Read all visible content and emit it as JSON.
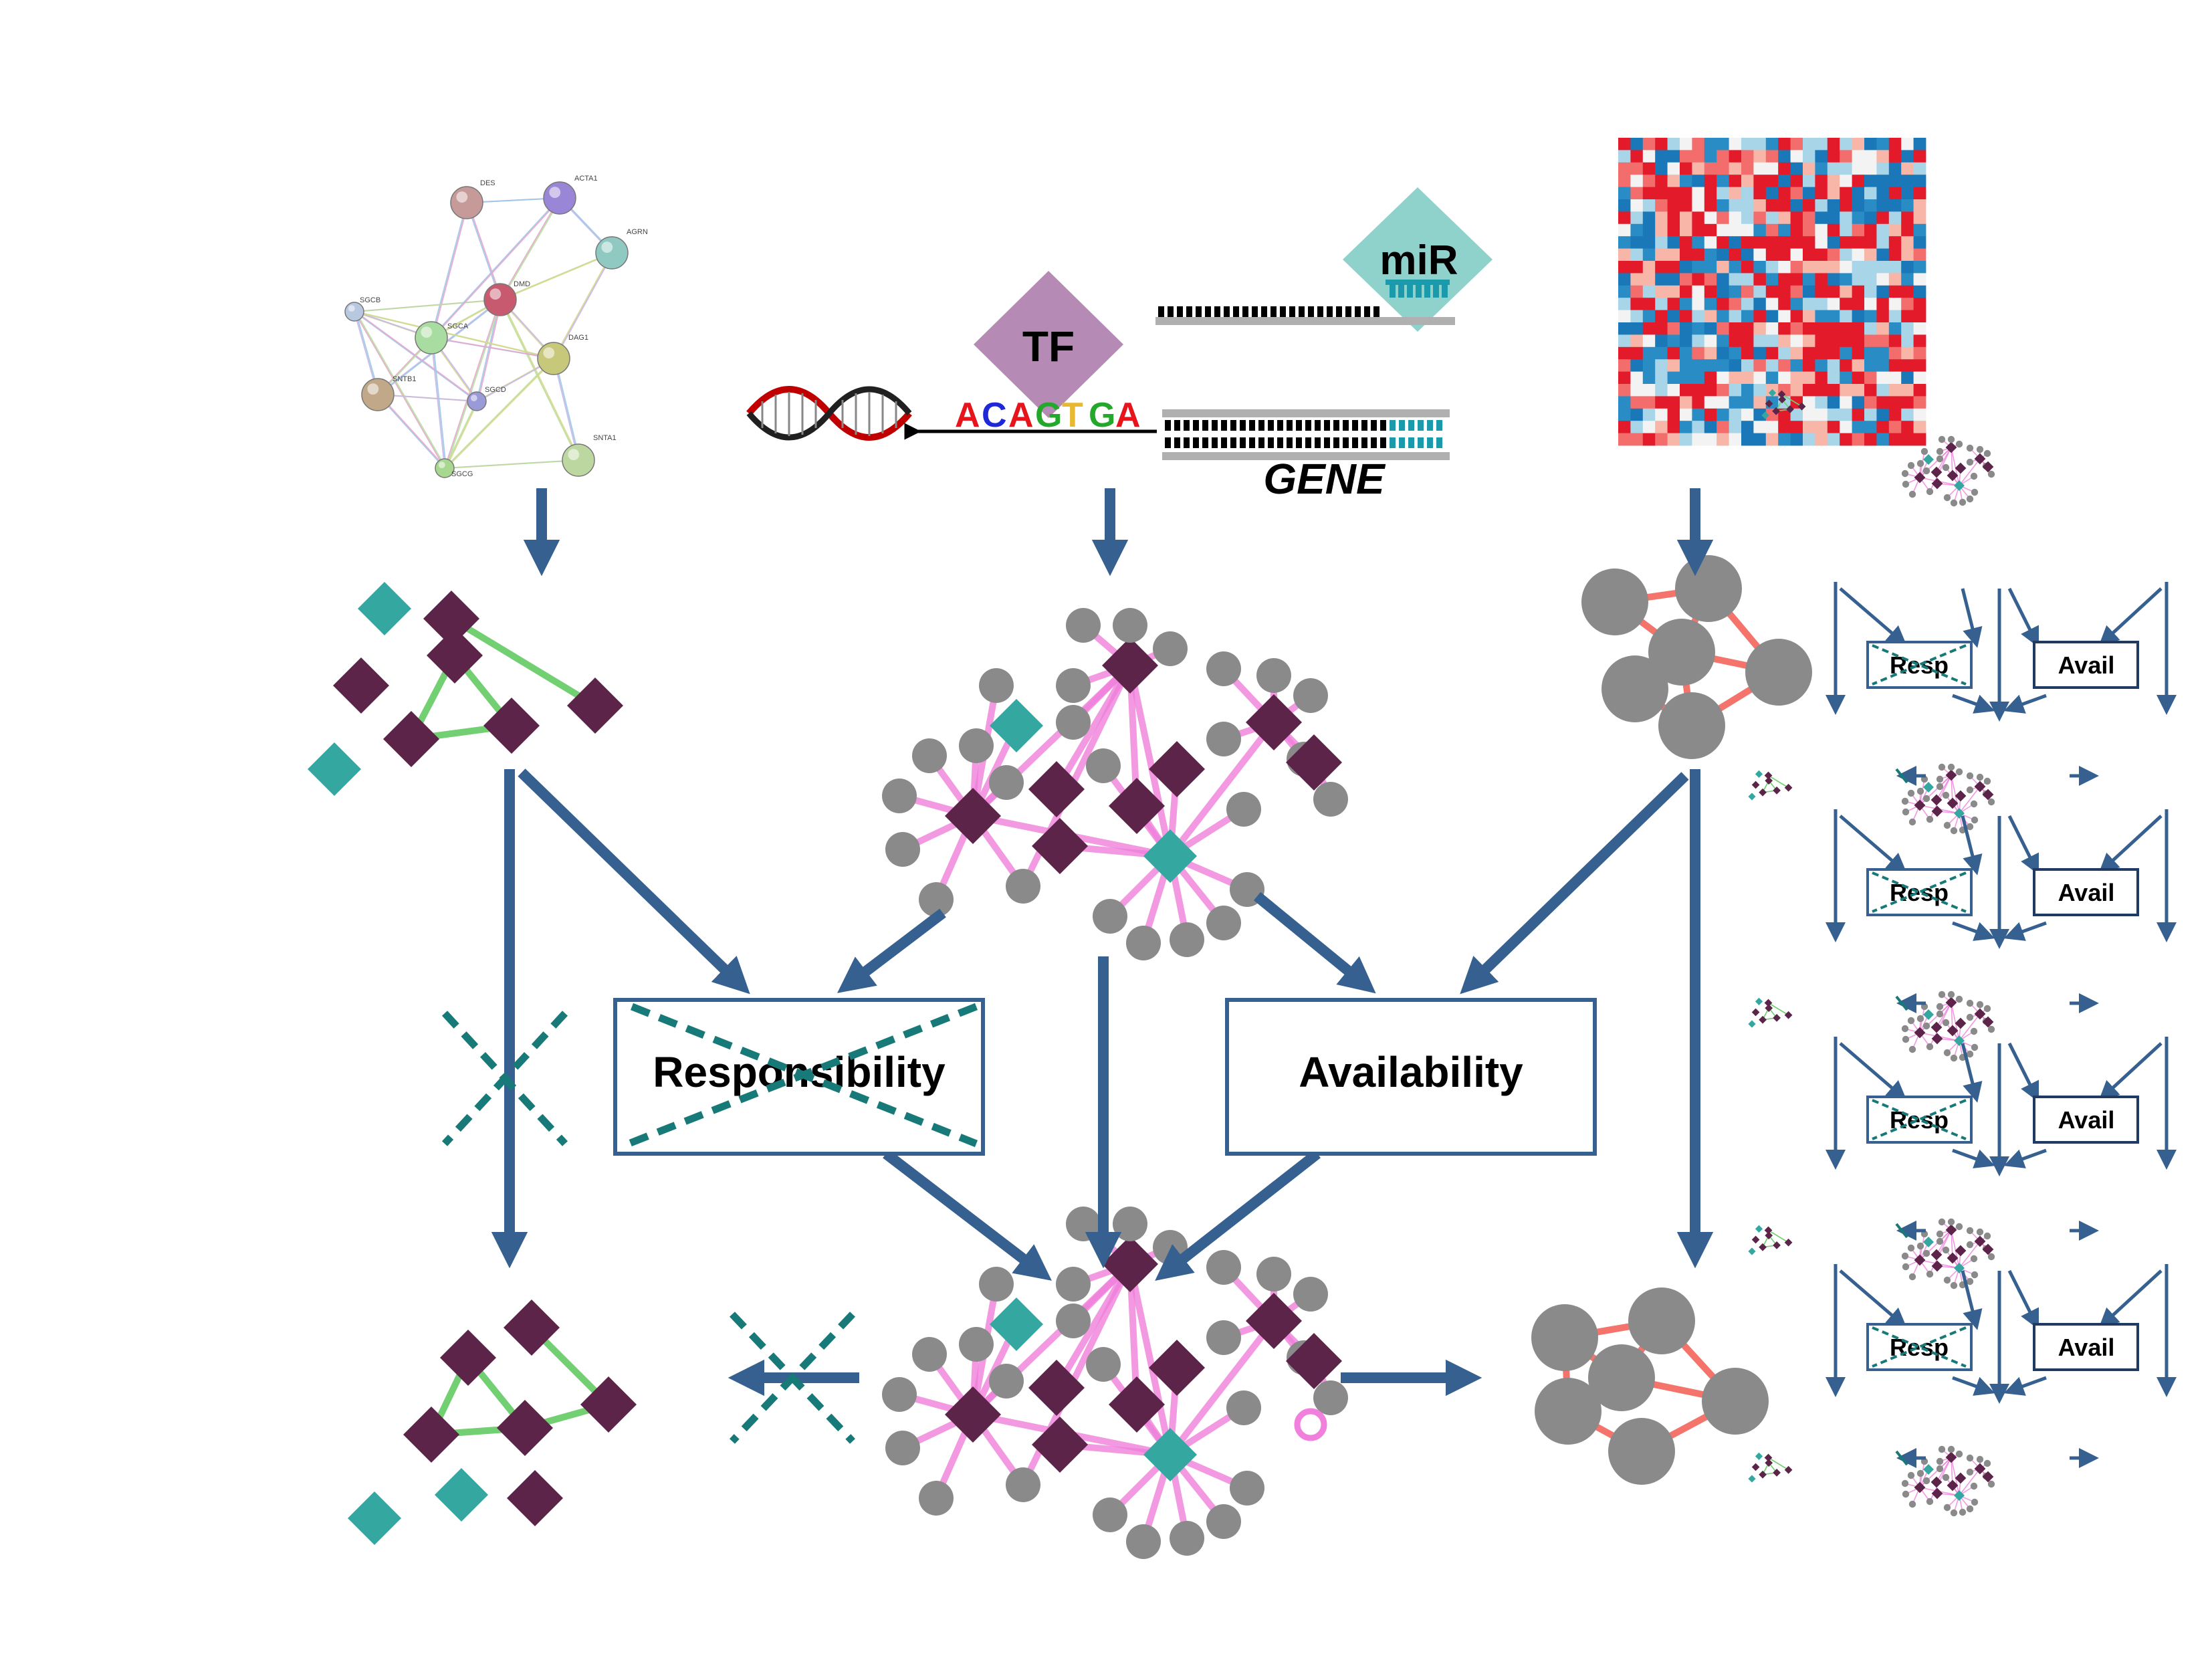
{
  "labels": {
    "tf": "TF",
    "mir": "miR",
    "gene": "GENE",
    "responsibility": "Responsibility",
    "availability": "Availability",
    "resp_short": "Resp",
    "avail_short": "Avail"
  },
  "dna_sequence": [
    {
      "letter": "A",
      "color": "#e8141c"
    },
    {
      "letter": "C",
      "color": "#1e28d8"
    },
    {
      "letter": "A",
      "color": "#e8141c"
    },
    {
      "letter": "G",
      "color": "#24a82c"
    },
    {
      "letter": "T",
      "color": "#e8b830"
    },
    {
      "letter": "G",
      "color": "#24a82c"
    },
    {
      "letter": "A",
      "color": "#e8141c"
    }
  ],
  "ppi_proteins": [
    "DES",
    "ACTA1",
    "AGRN",
    "DMD",
    "SGCB",
    "SGCA",
    "DAG1",
    "SNTB1",
    "SGCD",
    "SGCG",
    "SNTA1"
  ],
  "colors": {
    "arrow": "#36608f",
    "teal_node": "#34a8a0",
    "purple_node": "#5c2448",
    "gray_node": "#8a8a8a",
    "pink_edge": "#f080dc",
    "green_edge": "#72d072",
    "salmon_edge": "#f4736a",
    "cross": "#187a78",
    "tf_fill": "#b58ab5",
    "mir_fill": "#8fd2cc"
  }
}
